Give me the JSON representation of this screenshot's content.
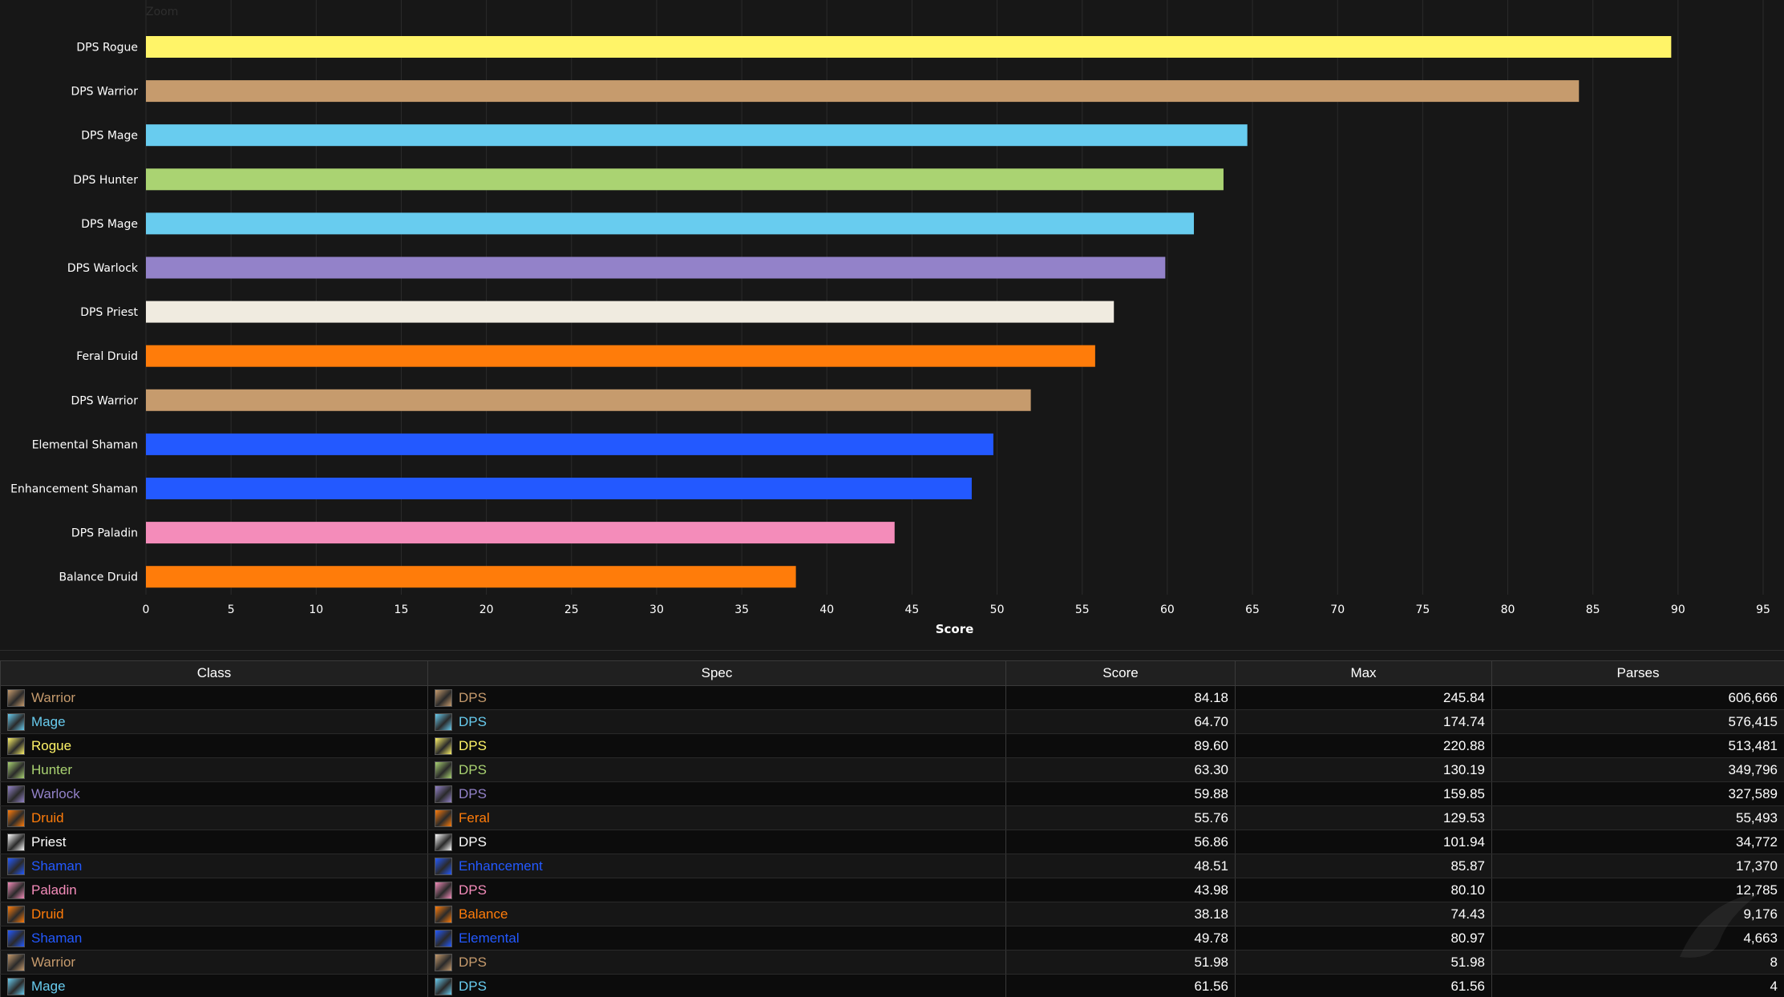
{
  "chart_data": {
    "type": "bar",
    "orientation": "horizontal",
    "zoom_label": "Zoom",
    "xlabel": "Score",
    "xlim": [
      0,
      95
    ],
    "xticks": [
      0,
      5,
      10,
      15,
      20,
      25,
      30,
      35,
      40,
      45,
      50,
      55,
      60,
      65,
      70,
      75,
      80,
      85,
      90,
      95
    ],
    "categories": [
      "DPS Rogue",
      "DPS Warrior",
      "DPS Mage",
      "DPS Hunter",
      "DPS Mage",
      "DPS Warlock",
      "DPS Priest",
      "Feral Druid",
      "DPS Warrior",
      "Elemental Shaman",
      "Enhancement Shaman",
      "DPS Paladin",
      "Balance Druid"
    ],
    "values": [
      89.6,
      84.18,
      64.7,
      63.3,
      61.56,
      59.88,
      56.86,
      55.76,
      51.98,
      49.78,
      48.51,
      43.98,
      38.18
    ],
    "colors": [
      "#fff468",
      "#c69b6d",
      "#68ccef",
      "#aad372",
      "#68ccef",
      "#9382c9",
      "#f0ebe0",
      "#ff7c0a",
      "#c69b6d",
      "#2359ff",
      "#2359ff",
      "#f48cba",
      "#ff7c0a"
    ],
    "grid": true
  },
  "table": {
    "headers": [
      "Class",
      "Spec",
      "Score",
      "Max",
      "Parses"
    ],
    "rows": [
      {
        "class": "Warrior",
        "class_color": "#c69b6d",
        "class_icon": "warrior-icon",
        "spec": "DPS",
        "spec_color": "#c69b6d",
        "spec_icon": "fury-icon",
        "score": "84.18",
        "max": "245.84",
        "parses": "606,666"
      },
      {
        "class": "Mage",
        "class_color": "#68ccef",
        "class_icon": "mage-icon",
        "spec": "DPS",
        "spec_color": "#68ccef",
        "spec_icon": "frost-icon",
        "score": "64.70",
        "max": "174.74",
        "parses": "576,415"
      },
      {
        "class": "Rogue",
        "class_color": "#fff468",
        "class_icon": "rogue-icon",
        "spec": "DPS",
        "spec_color": "#fff468",
        "spec_icon": "combat-icon",
        "score": "89.60",
        "max": "220.88",
        "parses": "513,481"
      },
      {
        "class": "Hunter",
        "class_color": "#aad372",
        "class_icon": "hunter-icon",
        "spec": "DPS",
        "spec_color": "#aad372",
        "spec_icon": "marksman-icon",
        "score": "63.30",
        "max": "130.19",
        "parses": "349,796"
      },
      {
        "class": "Warlock",
        "class_color": "#9382c9",
        "class_icon": "warlock-icon",
        "spec": "DPS",
        "spec_color": "#9382c9",
        "spec_icon": "destruction-icon",
        "score": "59.88",
        "max": "159.85",
        "parses": "327,589"
      },
      {
        "class": "Druid",
        "class_color": "#ff7c0a",
        "class_icon": "druid-icon",
        "spec": "Feral",
        "spec_color": "#ff7c0a",
        "spec_icon": "feral-icon",
        "score": "55.76",
        "max": "129.53",
        "parses": "55,493"
      },
      {
        "class": "Priest",
        "class_color": "#ffffff",
        "class_icon": "priest-icon",
        "spec": "DPS",
        "spec_color": "#ffffff",
        "spec_icon": "shadow-icon",
        "score": "56.86",
        "max": "101.94",
        "parses": "34,772"
      },
      {
        "class": "Shaman",
        "class_color": "#2359ff",
        "class_icon": "shaman-icon",
        "spec": "Enhancement",
        "spec_color": "#2359ff",
        "spec_icon": "enhancement-icon",
        "score": "48.51",
        "max": "85.87",
        "parses": "17,370"
      },
      {
        "class": "Paladin",
        "class_color": "#f48cba",
        "class_icon": "paladin-icon",
        "spec": "DPS",
        "spec_color": "#f48cba",
        "spec_icon": "retribution-icon",
        "score": "43.98",
        "max": "80.10",
        "parses": "12,785"
      },
      {
        "class": "Druid",
        "class_color": "#ff7c0a",
        "class_icon": "druid-icon",
        "spec": "Balance",
        "spec_color": "#ff7c0a",
        "spec_icon": "balance-icon",
        "score": "38.18",
        "max": "74.43",
        "parses": "9,176"
      },
      {
        "class": "Shaman",
        "class_color": "#2359ff",
        "class_icon": "shaman-icon",
        "spec": "Elemental",
        "spec_color": "#2359ff",
        "spec_icon": "elemental-icon",
        "score": "49.78",
        "max": "80.97",
        "parses": "4,663"
      },
      {
        "class": "Warrior",
        "class_color": "#c69b6d",
        "class_icon": "warrior-icon",
        "spec": "DPS",
        "spec_color": "#c69b6d",
        "spec_icon": "arms-icon",
        "score": "51.98",
        "max": "51.98",
        "parses": "8"
      },
      {
        "class": "Mage",
        "class_color": "#68ccef",
        "class_icon": "mage-icon",
        "spec": "DPS",
        "spec_color": "#68ccef",
        "spec_icon": "fire-icon",
        "score": "61.56",
        "max": "61.56",
        "parses": "4"
      }
    ]
  }
}
